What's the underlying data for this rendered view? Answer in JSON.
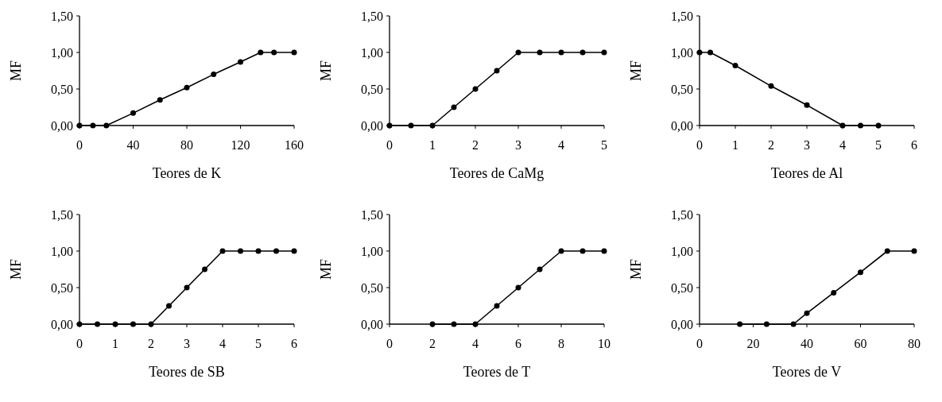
{
  "chart_data": [
    {
      "type": "line",
      "xlabel": "Teores de K",
      "ylabel": "MF",
      "marker": "circle",
      "line_style": "solid",
      "xlim": [
        0,
        160
      ],
      "xticks": [
        0,
        40,
        80,
        120,
        160
      ],
      "ylim": [
        0,
        1.5
      ],
      "yticks": [
        {
          "value": 0,
          "label": "0,00"
        },
        {
          "value": 0.5,
          "label": "0,50"
        },
        {
          "value": 1,
          "label": "1,00"
        },
        {
          "value": 1.5,
          "label": "1,50"
        }
      ],
      "series": [
        {
          "color": "#000000",
          "x": [
            0,
            10,
            20,
            40,
            60,
            80,
            100,
            120,
            135,
            145,
            160
          ],
          "values": [
            0,
            0,
            0,
            0.17,
            0.35,
            0.52,
            0.7,
            0.87,
            1,
            1,
            1
          ]
        }
      ]
    },
    {
      "type": "line",
      "xlabel": "Teores de CaMg",
      "ylabel": "MF",
      "marker": "circle",
      "line_style": "solid",
      "xlim": [
        0,
        5
      ],
      "xticks": [
        0,
        1,
        2,
        3,
        4,
        5
      ],
      "ylim": [
        0,
        1.5
      ],
      "yticks": [
        {
          "value": 0,
          "label": "0,00"
        },
        {
          "value": 0.5,
          "label": "0,50"
        },
        {
          "value": 1,
          "label": "1,00"
        },
        {
          "value": 1.5,
          "label": "1,50"
        }
      ],
      "series": [
        {
          "color": "#000000",
          "x": [
            0,
            0.5,
            1,
            1.5,
            2,
            2.5,
            3,
            3.5,
            4,
            4.5,
            5
          ],
          "values": [
            0,
            0,
            0,
            0.25,
            0.5,
            0.75,
            1,
            1,
            1,
            1,
            1
          ]
        }
      ]
    },
    {
      "type": "line",
      "xlabel": "Teores de Al",
      "ylabel": "MF",
      "marker": "circle",
      "line_style": "solid",
      "xlim": [
        0,
        6
      ],
      "xticks": [
        0,
        1,
        2,
        3,
        4,
        5,
        6
      ],
      "ylim": [
        0,
        1.5
      ],
      "yticks": [
        {
          "value": 0,
          "label": "0,00"
        },
        {
          "value": 0.5,
          "label": "0,50"
        },
        {
          "value": 1,
          "label": "1,00"
        },
        {
          "value": 1.5,
          "label": "1,50"
        }
      ],
      "series": [
        {
          "color": "#000000",
          "x": [
            0,
            0.3,
            1,
            2,
            3,
            4,
            4.5,
            5
          ],
          "values": [
            1,
            1,
            0.82,
            0.54,
            0.28,
            0,
            0,
            0
          ]
        }
      ]
    },
    {
      "type": "line",
      "xlabel": "Teores de SB",
      "ylabel": "MF",
      "marker": "circle",
      "line_style": "solid",
      "xlim": [
        0,
        6
      ],
      "xticks": [
        0,
        1,
        2,
        3,
        4,
        5,
        6
      ],
      "ylim": [
        0,
        1.5
      ],
      "yticks": [
        {
          "value": 0,
          "label": "0,00"
        },
        {
          "value": 0.5,
          "label": "0,50"
        },
        {
          "value": 1,
          "label": "1,00"
        },
        {
          "value": 1.5,
          "label": "1,50"
        }
      ],
      "series": [
        {
          "color": "#000000",
          "x": [
            0,
            0.5,
            1,
            1.5,
            2,
            2.5,
            3,
            3.5,
            4,
            4.5,
            5,
            5.5,
            6
          ],
          "values": [
            0,
            0,
            0,
            0,
            0,
            0.25,
            0.5,
            0.75,
            1,
            1,
            1,
            1,
            1
          ]
        }
      ]
    },
    {
      "type": "line",
      "xlabel": "Teores de T",
      "ylabel": "MF",
      "marker": "circle",
      "line_style": "solid",
      "xlim": [
        0,
        10
      ],
      "xticks": [
        0,
        2,
        4,
        6,
        8,
        10
      ],
      "ylim": [
        0,
        1.5
      ],
      "yticks": [
        {
          "value": 0,
          "label": "0,00"
        },
        {
          "value": 0.5,
          "label": "0,50"
        },
        {
          "value": 1,
          "label": "1,00"
        },
        {
          "value": 1.5,
          "label": "1,50"
        }
      ],
      "series": [
        {
          "color": "#000000",
          "x": [
            2,
            3,
            4,
            5,
            6,
            7,
            8,
            9,
            10
          ],
          "values": [
            0,
            0,
            0,
            0.25,
            0.5,
            0.75,
            1,
            1,
            1
          ]
        }
      ]
    },
    {
      "type": "line",
      "xlabel": "Teores de V",
      "ylabel": "MF",
      "marker": "circle",
      "line_style": "solid",
      "xlim": [
        0,
        80
      ],
      "xticks": [
        0,
        20,
        40,
        60,
        80
      ],
      "ylim": [
        0,
        1.5
      ],
      "yticks": [
        {
          "value": 0,
          "label": "0,00"
        },
        {
          "value": 0.5,
          "label": "0,50"
        },
        {
          "value": 1,
          "label": "1,00"
        },
        {
          "value": 1.5,
          "label": "1,50"
        }
      ],
      "series": [
        {
          "color": "#000000",
          "x": [
            15,
            25,
            35,
            40,
            50,
            60,
            70,
            80
          ],
          "values": [
            0,
            0,
            0,
            0.15,
            0.43,
            0.71,
            1,
            1
          ]
        }
      ]
    }
  ]
}
